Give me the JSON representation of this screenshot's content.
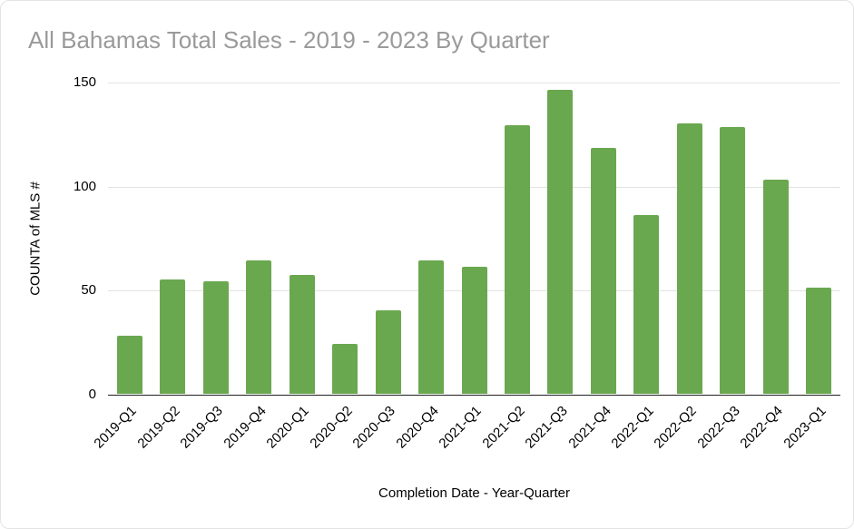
{
  "chart_data": {
    "type": "bar",
    "title": "All Bahamas Total Sales - 2019 - 2023 By Quarter",
    "categories": [
      "2019-Q1",
      "2019-Q2",
      "2019-Q3",
      "2019-Q4",
      "2020-Q1",
      "2020-Q2",
      "2020-Q3",
      "2020-Q4",
      "2021-Q1",
      "2021-Q2",
      "2021-Q3",
      "2021-Q4",
      "2022-Q1",
      "2022-Q2",
      "2022-Q3",
      "2022-Q4",
      "2023-Q1"
    ],
    "values": [
      28,
      55,
      54,
      64,
      57,
      24,
      40,
      64,
      61,
      129,
      146,
      118,
      86,
      130,
      128,
      103,
      51
    ],
    "xlabel": "Completion Date - Year-Quarter",
    "ylabel": "COUNTA of MLS #",
    "ylim": [
      0,
      150
    ],
    "yticks": [
      0,
      50,
      100,
      150
    ],
    "bar_color": "#6aa84f",
    "grid": true,
    "legend": "none",
    "title_color": "#9a9a9a"
  }
}
